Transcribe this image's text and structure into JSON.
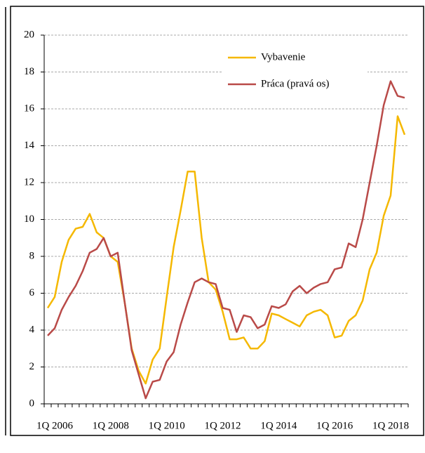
{
  "chart_data": {
    "type": "line",
    "categories": [
      "1Q 2006",
      null,
      null,
      null,
      null,
      null,
      null,
      null,
      "1Q 2008",
      null,
      null,
      null,
      null,
      null,
      null,
      null,
      "1Q 2010",
      null,
      null,
      null,
      null,
      null,
      null,
      null,
      "1Q 2012",
      null,
      null,
      null,
      null,
      null,
      null,
      null,
      "1Q 2014",
      null,
      null,
      null,
      null,
      null,
      null,
      null,
      "1Q 2016",
      null,
      null,
      null,
      null,
      null,
      null,
      null,
      "1Q 2018",
      null,
      null,
      null
    ],
    "series": [
      {
        "name": "Vybavenie",
        "color": "#f5b800",
        "values": [
          5.2,
          5.8,
          7.7,
          8.9,
          9.5,
          9.6,
          10.3,
          9.3,
          9.0,
          8.0,
          7.7,
          5.5,
          3.0,
          1.8,
          1.1,
          2.4,
          3.0,
          5.8,
          8.5,
          10.5,
          12.6,
          12.6,
          9.0,
          6.6,
          6.2,
          5.0,
          3.5,
          3.5,
          3.6,
          3.0,
          3.0,
          3.4,
          4.9,
          4.8,
          4.6,
          4.4,
          4.2,
          4.8,
          5.0,
          5.1,
          4.8,
          3.6,
          3.7,
          4.5,
          4.8,
          5.6,
          7.3,
          8.2,
          10.2,
          11.3,
          15.6,
          14.6
        ]
      },
      {
        "name": "Práca (pravá os)",
        "color": "#b94a48",
        "values": [
          3.7,
          4.1,
          5.1,
          5.8,
          6.4,
          7.2,
          8.2,
          8.4,
          9.0,
          8.0,
          8.2,
          5.5,
          2.9,
          1.6,
          0.3,
          1.2,
          1.3,
          2.3,
          2.8,
          4.3,
          5.5,
          6.6,
          6.8,
          6.6,
          6.5,
          5.2,
          5.1,
          3.9,
          4.8,
          4.7,
          4.1,
          4.3,
          5.3,
          5.2,
          5.4,
          6.1,
          6.4,
          6.0,
          6.3,
          6.5,
          6.6,
          7.3,
          7.4,
          8.7,
          8.5,
          10.0,
          12.0,
          14.0,
          16.2,
          17.5,
          16.7,
          16.6
        ]
      }
    ],
    "ylim": [
      0,
      20
    ],
    "yticks": [
      0,
      2,
      4,
      6,
      8,
      10,
      12,
      14,
      16,
      18,
      20
    ],
    "grid": true,
    "legend": "top-right"
  }
}
